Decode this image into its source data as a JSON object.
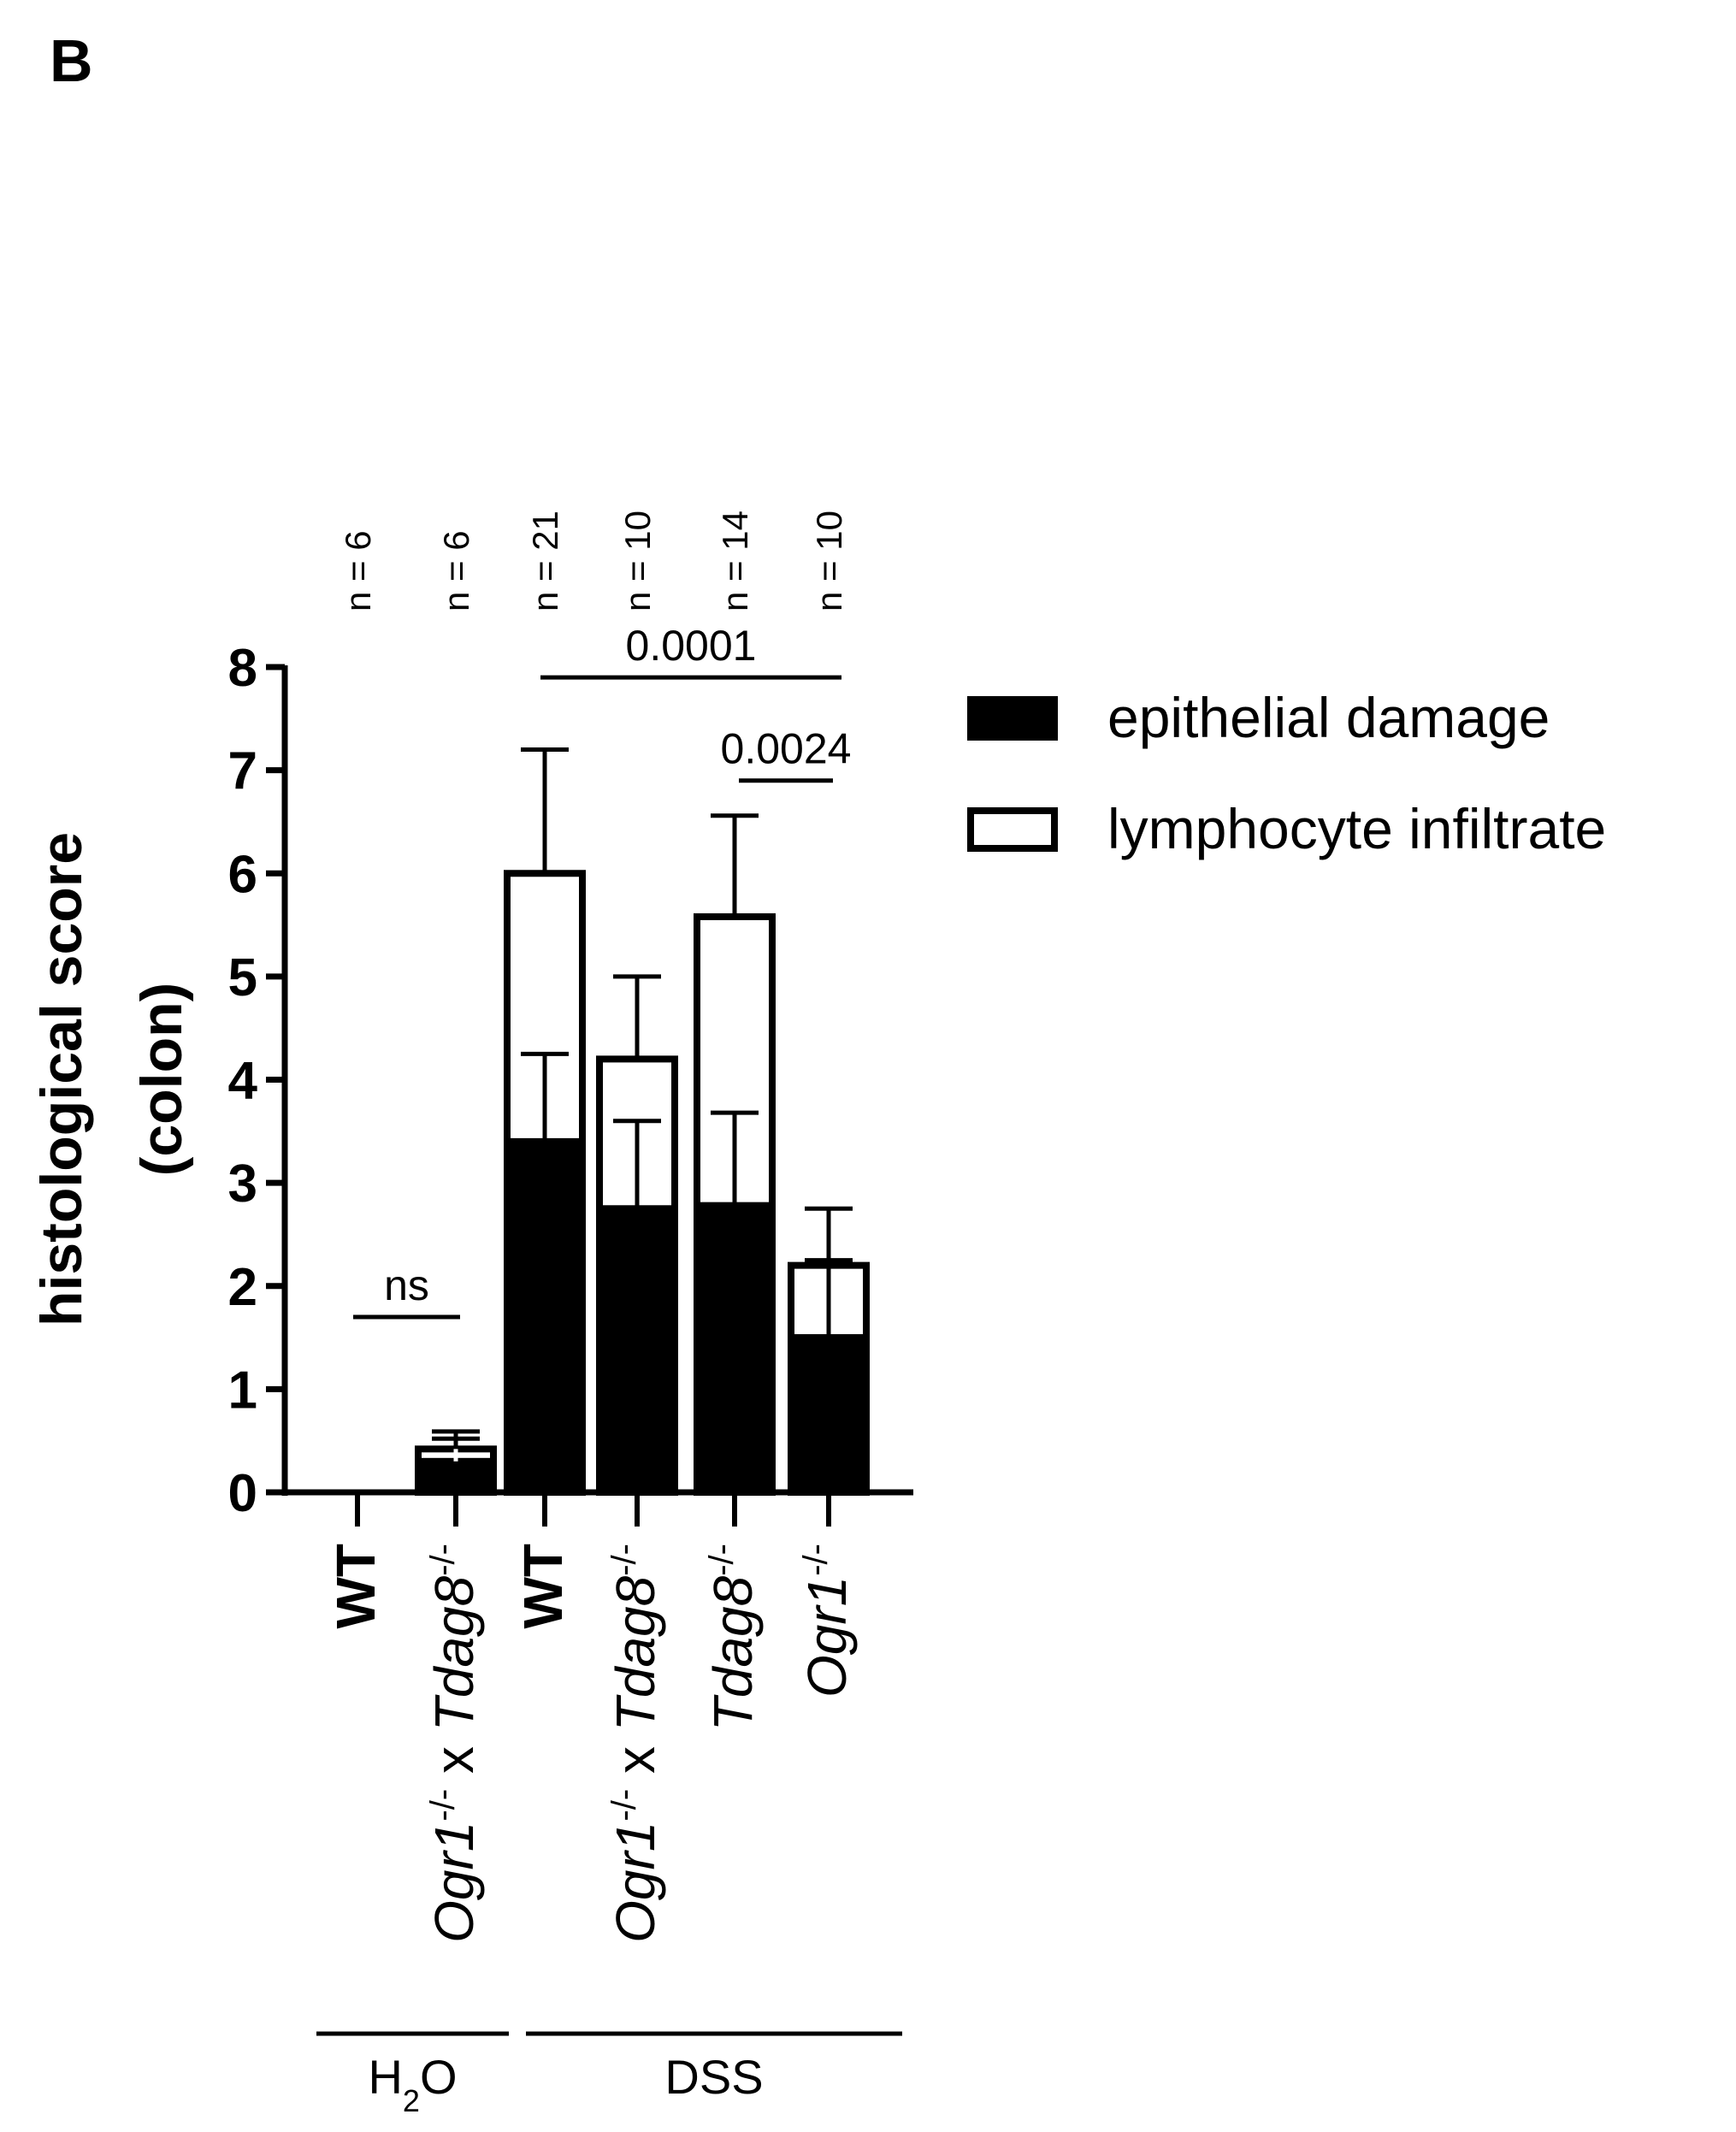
{
  "panel_label": "B",
  "chart_data": {
    "type": "bar",
    "stacked": true,
    "ylabel_lines": [
      "histological score",
      "(colon)"
    ],
    "ylim": [
      0,
      8
    ],
    "yticks": [
      0,
      1,
      2,
      3,
      4,
      5,
      6,
      7,
      8
    ],
    "categories": [
      {
        "id": "h2o-wt",
        "n_label": "n = 6",
        "parts": [
          {
            "text": "WT",
            "style": "bold"
          }
        ]
      },
      {
        "id": "h2o-dko",
        "n_label": "n = 6",
        "parts": [
          {
            "text": "Ogr1",
            "style": "ital"
          },
          {
            "text": "-/-",
            "style": "sup"
          },
          {
            "text": " x ",
            "style": "plain"
          },
          {
            "text": "Tdag8",
            "style": "ital"
          },
          {
            "text": "-/-",
            "style": "sup"
          }
        ]
      },
      {
        "id": "dss-wt",
        "n_label": "n = 21",
        "parts": [
          {
            "text": "WT",
            "style": "bold"
          }
        ]
      },
      {
        "id": "dss-dko",
        "n_label": "n = 10",
        "parts": [
          {
            "text": "Ogr1",
            "style": "ital"
          },
          {
            "text": "-/-",
            "style": "sup"
          },
          {
            "text": " x ",
            "style": "plain"
          },
          {
            "text": "Tdag8",
            "style": "ital"
          },
          {
            "text": "-/-",
            "style": "sup"
          }
        ]
      },
      {
        "id": "dss-tdag8",
        "n_label": "n = 14",
        "parts": [
          {
            "text": "Tdag8",
            "style": "ital"
          },
          {
            "text": "-/-",
            "style": "sup"
          }
        ]
      },
      {
        "id": "dss-ogr1",
        "n_label": "n = 10",
        "parts": [
          {
            "text": "Ogr1",
            "style": "ital"
          },
          {
            "text": "-/-",
            "style": "sup"
          }
        ]
      }
    ],
    "series": [
      {
        "name": "epithelial damage",
        "color": "#000000",
        "values": [
          0,
          0.3,
          3.4,
          2.75,
          2.78,
          1.5
        ],
        "errors": [
          0,
          0.22,
          0.85,
          0.85,
          0.9,
          0.75
        ]
      },
      {
        "name": "lymphocyte infiltrate",
        "color": "#ffffff",
        "values": [
          0,
          0.12,
          2.6,
          1.45,
          2.8,
          0.7
        ],
        "errors": [
          0,
          0.17,
          1.2,
          0.8,
          0.98,
          0.55
        ]
      }
    ],
    "significance": [
      {
        "from": 0,
        "to": 1,
        "label": "ns",
        "y": 1.7
      },
      {
        "from": 2,
        "to": 5,
        "label": "0.0001",
        "y": 7.9
      },
      {
        "from": 4,
        "to": 5,
        "label": "0.0024",
        "y": 6.9
      }
    ],
    "groups": [
      {
        "label_main": "H",
        "label_sub": "2",
        "label_tail": "O",
        "from": 0,
        "to": 1
      },
      {
        "label_main": "DSS",
        "label_sub": "",
        "label_tail": "",
        "from": 2,
        "to": 5
      }
    ],
    "legend": {
      "position": "top-right"
    }
  }
}
